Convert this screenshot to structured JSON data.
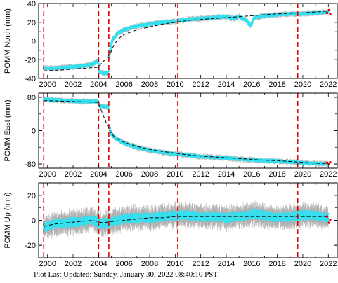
{
  "chart_data": [
    {
      "type": "scatter",
      "ylabel": "POMM North (mm)",
      "xlim": [
        1999.3,
        2022.7
      ],
      "ylim": [
        -40,
        40
      ],
      "yticks": [
        -40,
        -20,
        0,
        20,
        40
      ],
      "xticks": [
        2000,
        2002,
        2004,
        2006,
        2008,
        2010,
        2012,
        2014,
        2016,
        2018,
        2020,
        2022
      ],
      "grid": false,
      "markers": [
        1999.7,
        2004.0,
        2004.8,
        2010.2,
        2019.6
      ],
      "series": [
        {
          "values": [
            [
              1999.7,
              -29
            ],
            [
              2000.5,
              -29
            ],
            [
              2001.5,
              -28
            ],
            [
              2002.5,
              -27
            ],
            [
              2003.5,
              -25
            ],
            [
              2003.95,
              -21
            ],
            [
              2004.05,
              -32
            ],
            [
              2004.3,
              -34
            ],
            [
              2004.55,
              -34
            ],
            [
              2004.75,
              -35
            ],
            [
              2004.9,
              -10
            ],
            [
              2005.1,
              2
            ],
            [
              2005.5,
              8
            ],
            [
              2006,
              12
            ],
            [
              2006.5,
              14
            ],
            [
              2007,
              16
            ],
            [
              2008,
              18
            ],
            [
              2009,
              20
            ],
            [
              2010,
              21
            ],
            [
              2011,
              23
            ],
            [
              2012,
              24
            ],
            [
              2013,
              25
            ],
            [
              2014,
              26
            ],
            [
              2014.6,
              24
            ],
            [
              2015.0,
              26
            ],
            [
              2015.6,
              22
            ],
            [
              2015.9,
              16
            ],
            [
              2016.2,
              25
            ],
            [
              2017,
              27
            ],
            [
              2018,
              28
            ],
            [
              2019,
              29
            ],
            [
              2020,
              29
            ],
            [
              2021,
              30
            ],
            [
              2022,
              31
            ]
          ]
        },
        {
          "values": [
            [
              1999.7,
              -32
            ],
            [
              2001,
              -31
            ],
            [
              2002,
              -30
            ],
            [
              2003,
              -29
            ],
            [
              2003.95,
              -28
            ],
            [
              2004.9,
              -14
            ],
            [
              2005.2,
              -4
            ],
            [
              2005.6,
              3
            ],
            [
              2006,
              7
            ],
            [
              2007,
              12
            ],
            [
              2008,
              15
            ],
            [
              2009,
              18
            ],
            [
              2010,
              20
            ],
            [
              2011,
              22
            ],
            [
              2012,
              23
            ],
            [
              2013,
              24
            ],
            [
              2014,
              25
            ],
            [
              2015,
              26
            ],
            [
              2016,
              27
            ],
            [
              2017,
              28
            ],
            [
              2018,
              29
            ],
            [
              2019,
              29.5
            ],
            [
              2020,
              30
            ],
            [
              2021,
              31
            ],
            [
              2022,
              32
            ]
          ]
        },
        {
          "values": [
            [
              2021.9,
              30
            ],
            [
              2022.05,
              33
            ],
            [
              2022.15,
              29
            ]
          ]
        }
      ]
    },
    {
      "type": "scatter",
      "ylabel": "POMM East (mm)",
      "xlim": [
        1999.3,
        2022.7
      ],
      "ylim": [
        -90,
        90
      ],
      "yticks": [
        -80,
        0,
        80
      ],
      "xticks": [
        2000,
        2002,
        2004,
        2006,
        2008,
        2010,
        2012,
        2014,
        2016,
        2018,
        2020,
        2022
      ],
      "grid": false,
      "markers": [
        1999.7,
        2004.0,
        2004.8,
        2010.2,
        2019.6
      ],
      "series": [
        {
          "values": [
            [
              1999.7,
              75
            ],
            [
              2000.5,
              74
            ],
            [
              2001.5,
              72
            ],
            [
              2002.5,
              70
            ],
            [
              2003.5,
              70
            ],
            [
              2003.95,
              70
            ],
            [
              2004.05,
              60
            ],
            [
              2004.4,
              58
            ],
            [
              2004.75,
              57
            ],
            [
              2004.85,
              10
            ],
            [
              2005.0,
              -8
            ],
            [
              2005.4,
              -20
            ],
            [
              2006,
              -30
            ],
            [
              2007,
              -40
            ],
            [
              2008,
              -47
            ],
            [
              2009,
              -52
            ],
            [
              2010,
              -56
            ],
            [
              2011,
              -59
            ],
            [
              2012,
              -62
            ],
            [
              2013,
              -64
            ],
            [
              2014,
              -66
            ],
            [
              2015,
              -68
            ],
            [
              2016,
              -70
            ],
            [
              2017,
              -72
            ],
            [
              2018,
              -73
            ],
            [
              2019,
              -75
            ],
            [
              2020,
              -77
            ],
            [
              2021,
              -79
            ],
            [
              2022,
              -80
            ]
          ]
        },
        {
          "values": [
            [
              1999.7,
              72
            ],
            [
              2001,
              71
            ],
            [
              2002,
              70
            ],
            [
              2003,
              69
            ],
            [
              2003.95,
              68
            ],
            [
              2004.85,
              0
            ],
            [
              2005.2,
              -14
            ],
            [
              2005.6,
              -22
            ],
            [
              2006,
              -28
            ],
            [
              2007,
              -38
            ],
            [
              2008,
              -45
            ],
            [
              2009,
              -50
            ],
            [
              2010,
              -54
            ],
            [
              2011,
              -58
            ],
            [
              2012,
              -61
            ],
            [
              2013,
              -63
            ],
            [
              2014,
              -65
            ],
            [
              2015,
              -67
            ],
            [
              2016,
              -69
            ],
            [
              2017,
              -71
            ],
            [
              2018,
              -72
            ],
            [
              2019,
              -74
            ],
            [
              2020,
              -76
            ],
            [
              2021,
              -78
            ],
            [
              2022,
              -79
            ]
          ]
        },
        {
          "values": [
            [
              2021.9,
              -77
            ],
            [
              2022.05,
              -80
            ],
            [
              2022.15,
              -76
            ]
          ]
        }
      ]
    },
    {
      "type": "scatter",
      "ylabel": "POMM Up (mm)",
      "xlim": [
        1999.3,
        2022.7
      ],
      "ylim": [
        -30,
        30
      ],
      "yticks": [
        -20,
        0,
        20
      ],
      "xticks": [
        2000,
        2002,
        2004,
        2006,
        2008,
        2010,
        2012,
        2014,
        2016,
        2018,
        2020,
        2022
      ],
      "xticklabels": [
        "2000",
        "2002",
        "2004",
        "2006",
        "2008",
        "2010",
        "2012",
        "2014",
        "2016",
        "2018",
        "2020",
        "2022"
      ],
      "grid": false,
      "markers": [
        1999.7,
        2004.0,
        2004.8,
        2010.2,
        2019.6
      ],
      "series": [
        {
          "values": [
            [
              1999.7,
              -6
            ],
            [
              2000.5,
              -3
            ],
            [
              2001.5,
              -2
            ],
            [
              2002.5,
              -1
            ],
            [
              2003.5,
              0
            ],
            [
              2004.3,
              -3
            ],
            [
              2005,
              -1
            ],
            [
              2006,
              1
            ],
            [
              2007,
              2
            ],
            [
              2008,
              2
            ],
            [
              2009,
              3
            ],
            [
              2010,
              4
            ],
            [
              2011,
              4
            ],
            [
              2012,
              3
            ],
            [
              2013,
              3
            ],
            [
              2014,
              2
            ],
            [
              2015,
              3
            ],
            [
              2016,
              5
            ],
            [
              2017,
              4
            ],
            [
              2018,
              2
            ],
            [
              2019,
              3
            ],
            [
              2020,
              4
            ],
            [
              2021,
              4
            ],
            [
              2022,
              2
            ]
          ]
        },
        {
          "values": [
            [
              1999.7,
              -5
            ],
            [
              2000.5,
              -3
            ],
            [
              2001.5,
              -2
            ],
            [
              2002.5,
              -1
            ],
            [
              2003.5,
              0
            ],
            [
              2004.3,
              -2
            ],
            [
              2005,
              -1
            ],
            [
              2006,
              0
            ],
            [
              2007,
              1
            ],
            [
              2008,
              2
            ],
            [
              2009,
              2
            ],
            [
              2010,
              3
            ],
            [
              2011,
              3
            ],
            [
              2012,
              3
            ],
            [
              2013,
              3
            ],
            [
              2014,
              3
            ],
            [
              2015,
              3
            ],
            [
              2016,
              3
            ],
            [
              2017,
              3
            ],
            [
              2018,
              3
            ],
            [
              2019,
              3
            ],
            [
              2020,
              3
            ],
            [
              2021,
              3
            ],
            [
              2022,
              3
            ]
          ]
        },
        {
          "values": [
            [
              2021.9,
              3
            ],
            [
              2022.05,
              -2
            ],
            [
              2022.15,
              0
            ]
          ]
        }
      ]
    }
  ],
  "footer": {
    "text": "Plot Last Updated:   Sunday, January 30, 2022 08:40:10 PST"
  },
  "colors": {
    "data": "#33e0f0",
    "errorbar": "#b0b0b0",
    "model": "#000000",
    "marker": "#e00000",
    "recent": "#e00000"
  }
}
